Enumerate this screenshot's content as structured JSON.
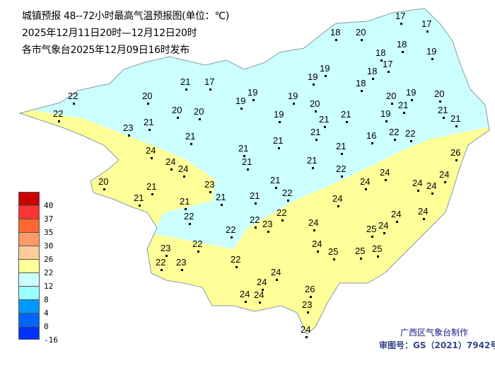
{
  "header": {
    "title": "城镇预报 48--72小时最高气温预报图(单位：℃)",
    "period": "2025年12月11日20时—12月12日20时",
    "issued": "各市气象台2025年12月09日16时发布"
  },
  "legend": {
    "levels": [
      {
        "label": "40",
        "color": "#cc0000"
      },
      {
        "label": "37",
        "color": "#ff3333"
      },
      {
        "label": "35",
        "color": "#ff6633"
      },
      {
        "label": "30",
        "color": "#ff9966"
      },
      {
        "label": "26",
        "color": "#ffcc99"
      },
      {
        "label": "22",
        "color": "#ffff99"
      },
      {
        "label": "12",
        "color": "#ccffff"
      },
      {
        "label": "8",
        "color": "#99ffff"
      },
      {
        "label": "4",
        "color": "#0099ff"
      },
      {
        "label": "0",
        "color": "#0066ff"
      },
      {
        "label": "-16",
        "color": "#0033ff"
      }
    ]
  },
  "map": {
    "region_colors": {
      "cool": "#ccffff",
      "warm": "#ffff99",
      "border": "#8899aa"
    },
    "station_values": [
      22,
      22,
      20,
      21,
      17,
      19,
      19,
      19,
      19,
      19,
      18,
      20,
      17,
      17,
      18,
      19,
      18,
      18,
      17,
      18,
      20,
      19,
      21,
      20,
      21,
      21,
      19,
      16,
      22,
      22,
      20,
      21,
      21,
      21,
      19,
      21,
      21,
      21,
      22,
      21,
      21,
      20,
      20,
      21,
      23,
      21,
      24,
      24,
      24,
      20,
      21,
      21,
      21,
      23,
      21,
      21,
      21,
      22,
      22,
      22,
      23,
      22,
      22,
      22,
      23,
      22,
      23,
      22,
      24,
      24,
      25,
      24,
      24,
      24,
      24,
      24,
      24,
      26,
      24,
      24,
      24,
      25,
      25,
      25,
      24,
      24,
      24,
      24,
      26,
      23,
      24
    ]
  },
  "footer": {
    "producer": "广西区气象台制作",
    "approval": "审图号：GS（2021）7942号"
  }
}
